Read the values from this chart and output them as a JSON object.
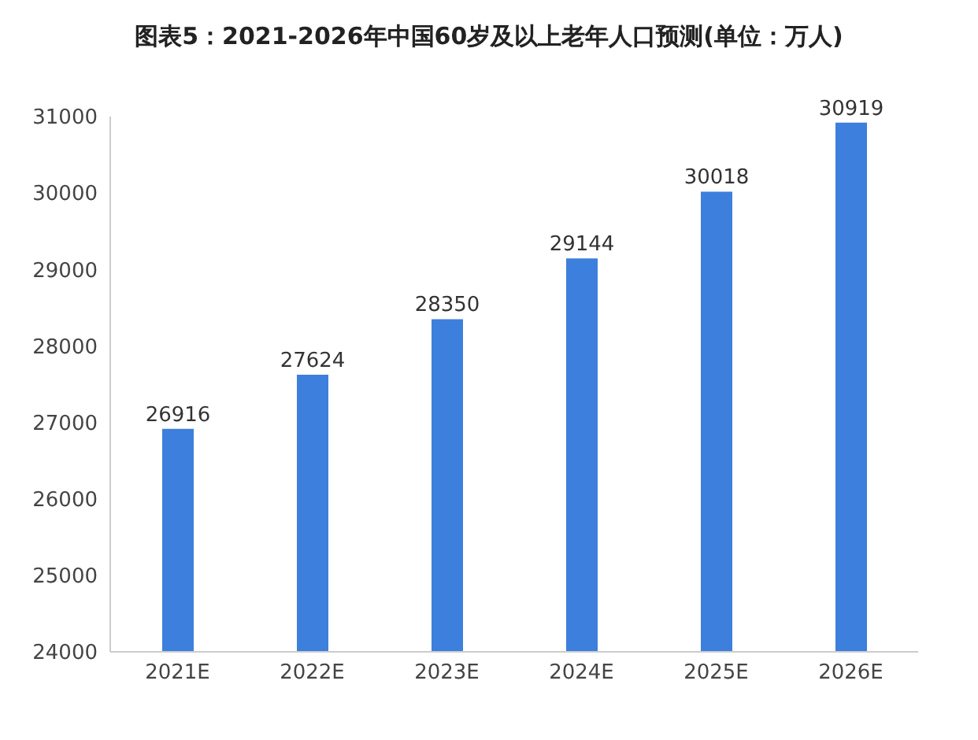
{
  "chart_data": {
    "type": "bar",
    "title": "图表5：2021-2026年中国60岁及以上老年人口预测(单位：万人)",
    "categories": [
      "2021E",
      "2022E",
      "2023E",
      "2024E",
      "2025E",
      "2026E"
    ],
    "values": [
      26916,
      27624,
      28350,
      29144,
      30018,
      30919
    ],
    "color": "#3d7fdc",
    "ylim": [
      24000,
      31000
    ],
    "yticks": [
      24000,
      25000,
      26000,
      27000,
      28000,
      29000,
      30000,
      31000
    ],
    "data_labels": true,
    "grid": false,
    "legend": false
  }
}
